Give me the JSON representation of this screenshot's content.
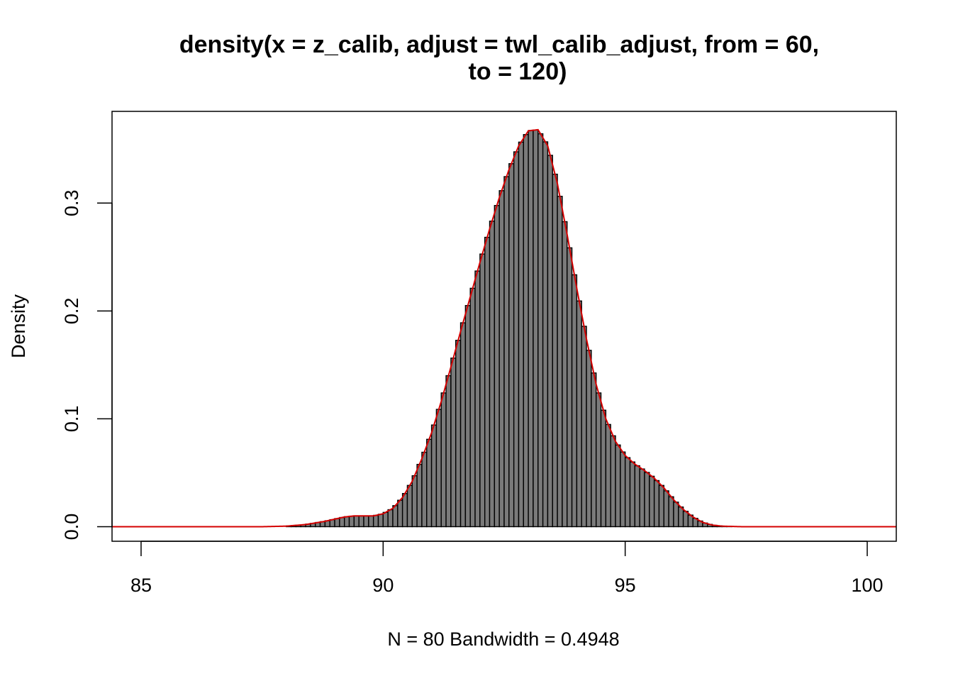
{
  "chart_data": {
    "type": "bar",
    "title_line1": "density(x = z_calib, adjust = twl_calib_adjust, from = 60,",
    "title_line2": "to = 120)",
    "xlabel": "N = 80   Bandwidth = 0.4948",
    "ylabel": "Density",
    "xlim": [
      84.4,
      100.6
    ],
    "ylim": [
      -0.0135,
      0.385
    ],
    "x_ticks": [
      85,
      90,
      95,
      100
    ],
    "x_tick_labels": [
      "85",
      "90",
      "95",
      "100"
    ],
    "y_ticks": [
      0.0,
      0.1,
      0.2,
      0.3
    ],
    "y_tick_labels": [
      "0.0",
      "0.1",
      "0.2",
      "0.3"
    ],
    "bar_width": 0.1,
    "bar_color": "#7a7a7a",
    "bar_border_color": "#000000",
    "curve_color": "#d40000",
    "curve_x_range": [
      84.4,
      100.6
    ],
    "density_points": [
      [
        84.4,
        0.0
      ],
      [
        87.5,
        0.0
      ],
      [
        88.0,
        0.0005
      ],
      [
        88.4,
        0.002
      ],
      [
        88.8,
        0.005
      ],
      [
        89.0,
        0.007
      ],
      [
        89.2,
        0.009
      ],
      [
        89.4,
        0.01
      ],
      [
        89.6,
        0.01
      ],
      [
        89.8,
        0.01
      ],
      [
        90.0,
        0.012
      ],
      [
        90.2,
        0.017
      ],
      [
        90.4,
        0.027
      ],
      [
        90.6,
        0.042
      ],
      [
        90.8,
        0.063
      ],
      [
        91.0,
        0.087
      ],
      [
        91.2,
        0.116
      ],
      [
        91.4,
        0.148
      ],
      [
        91.6,
        0.181
      ],
      [
        91.8,
        0.213
      ],
      [
        92.0,
        0.245
      ],
      [
        92.2,
        0.276
      ],
      [
        92.4,
        0.305
      ],
      [
        92.6,
        0.331
      ],
      [
        92.8,
        0.353
      ],
      [
        93.0,
        0.367
      ],
      [
        93.2,
        0.368
      ],
      [
        93.4,
        0.353
      ],
      [
        93.6,
        0.318
      ],
      [
        93.8,
        0.271
      ],
      [
        94.0,
        0.221
      ],
      [
        94.2,
        0.174
      ],
      [
        94.4,
        0.132
      ],
      [
        94.6,
        0.1
      ],
      [
        94.8,
        0.079
      ],
      [
        95.0,
        0.066
      ],
      [
        95.2,
        0.058
      ],
      [
        95.4,
        0.052
      ],
      [
        95.6,
        0.045
      ],
      [
        95.8,
        0.036
      ],
      [
        96.0,
        0.025
      ],
      [
        96.2,
        0.016
      ],
      [
        96.4,
        0.009
      ],
      [
        96.6,
        0.004
      ],
      [
        96.8,
        0.0015
      ],
      [
        97.0,
        0.0005
      ],
      [
        97.4,
        0.0
      ],
      [
        100.6,
        0.0
      ]
    ]
  }
}
